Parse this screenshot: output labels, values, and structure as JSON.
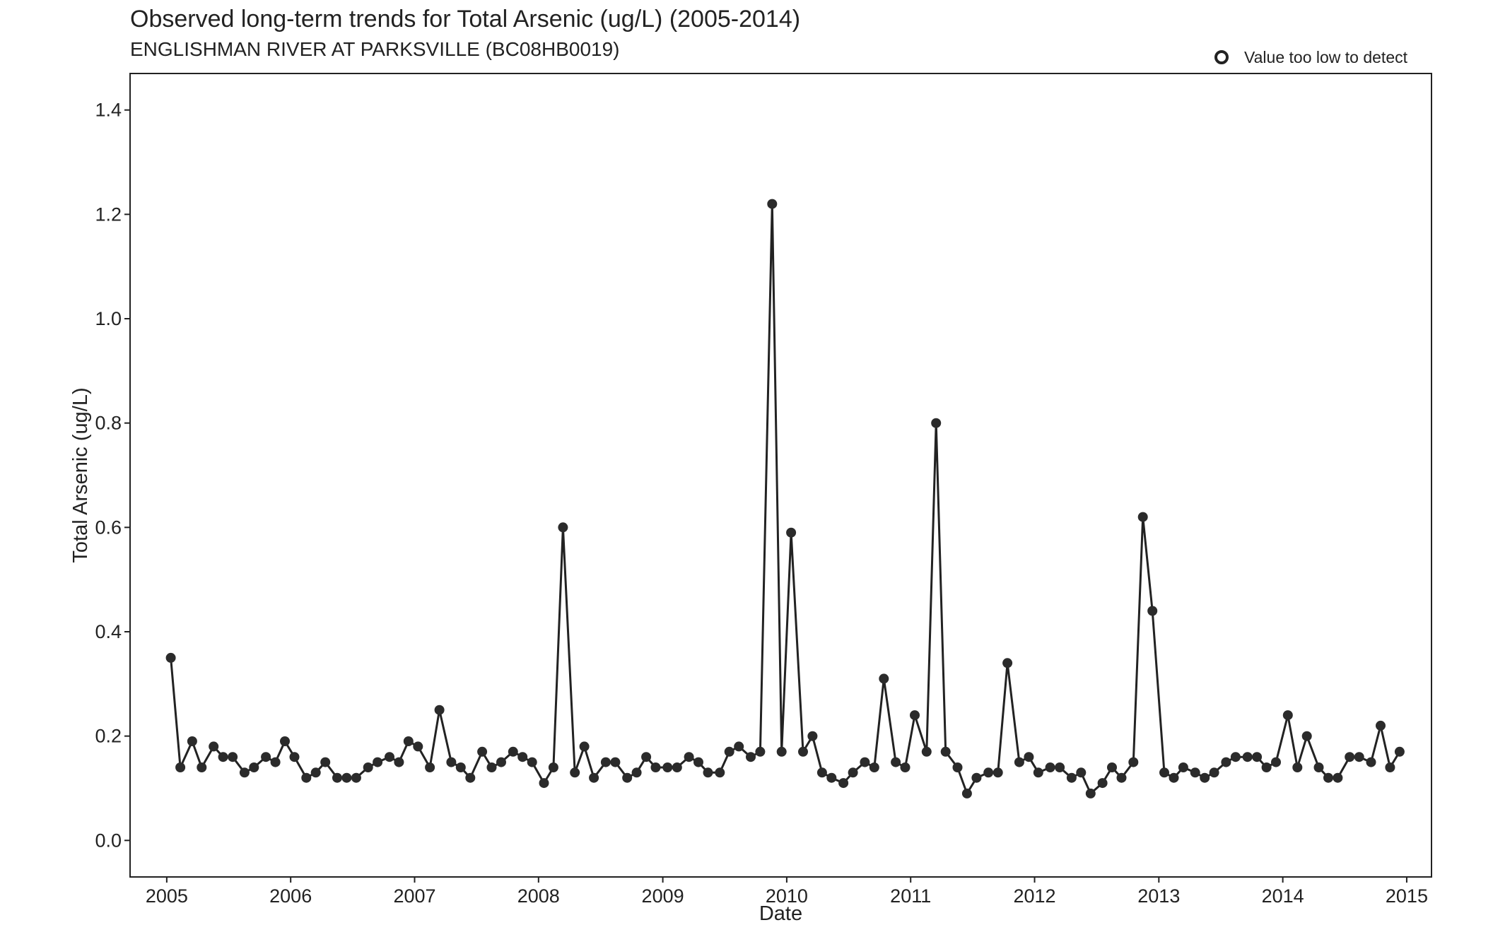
{
  "chart_data": {
    "type": "line",
    "title": "Observed long-term trends for Total Arsenic (ug/L) (2005-2014)",
    "subtitle": "ENGLISHMAN RIVER AT PARKSVILLE (BC08HB0019)",
    "xlabel": "Date",
    "ylabel": "Total Arsenic (ug/L)",
    "xlim": [
      "2004-09-15",
      "2015-03-15"
    ],
    "ylim": [
      -0.07,
      1.47
    ],
    "xticks": [
      "2005",
      "2006",
      "2007",
      "2008",
      "2009",
      "2010",
      "2011",
      "2012",
      "2013",
      "2014",
      "2015"
    ],
    "yticks": [
      "0.0",
      "0.2",
      "0.4",
      "0.6",
      "0.8",
      "1.0",
      "1.2",
      "1.4"
    ],
    "legend": {
      "position": "top-right",
      "label": "Value too low to detect",
      "marker": "open-circle"
    },
    "grid": false,
    "colors": {
      "line": "#222222",
      "point": "#2b2b2b"
    },
    "series": [
      {
        "x": [
          "2005-01-13",
          "2005-02-10",
          "2005-03-17",
          "2005-04-14",
          "2005-05-19",
          "2005-06-16",
          "2005-07-14",
          "2005-08-18",
          "2005-09-15",
          "2005-10-20",
          "2005-11-17",
          "2005-12-15",
          "2006-01-12",
          "2006-02-16",
          "2006-03-16",
          "2006-04-13",
          "2006-05-18",
          "2006-06-15",
          "2006-07-13",
          "2006-08-17",
          "2006-09-14",
          "2006-10-19",
          "2006-11-16",
          "2006-12-14",
          "2007-01-11",
          "2007-02-15",
          "2007-03-15",
          "2007-04-19",
          "2007-05-17",
          "2007-06-14",
          "2007-07-19",
          "2007-08-16",
          "2007-09-13",
          "2007-10-18",
          "2007-11-15",
          "2007-12-13",
          "2008-01-17",
          "2008-02-14",
          "2008-03-13",
          "2008-04-17",
          "2008-05-15",
          "2008-06-12",
          "2008-07-17",
          "2008-08-14",
          "2008-09-18",
          "2008-10-16",
          "2008-11-13",
          "2008-12-11",
          "2009-01-15",
          "2009-02-12",
          "2009-03-19",
          "2009-04-16",
          "2009-05-14",
          "2009-06-18",
          "2009-07-16",
          "2009-08-13",
          "2009-09-17",
          "2009-10-15",
          "2009-11-19",
          "2009-12-17",
          "2010-01-14",
          "2010-02-18",
          "2010-03-18",
          "2010-04-15",
          "2010-05-13",
          "2010-06-17",
          "2010-07-15",
          "2010-08-19",
          "2010-09-16",
          "2010-10-14",
          "2010-11-18",
          "2010-12-16",
          "2011-01-13",
          "2011-02-17",
          "2011-03-17",
          "2011-04-14",
          "2011-05-19",
          "2011-06-16",
          "2011-07-14",
          "2011-08-18",
          "2011-09-15",
          "2011-10-13",
          "2011-11-17",
          "2011-12-15",
          "2012-01-12",
          "2012-02-16",
          "2012-03-15",
          "2012-04-19",
          "2012-05-17",
          "2012-06-14",
          "2012-07-19",
          "2012-08-16",
          "2012-09-13",
          "2012-10-18",
          "2012-11-15",
          "2012-12-13",
          "2013-01-17",
          "2013-02-14",
          "2013-03-14",
          "2013-04-18",
          "2013-05-16",
          "2013-06-13",
          "2013-07-18",
          "2013-08-15",
          "2013-09-19",
          "2013-10-17",
          "2013-11-14",
          "2013-12-12",
          "2014-01-16",
          "2014-02-13",
          "2014-03-13",
          "2014-04-17",
          "2014-05-15",
          "2014-06-12",
          "2014-07-17",
          "2014-08-14",
          "2014-09-18",
          "2014-10-16",
          "2014-11-13",
          "2014-12-11"
        ],
        "y": [
          0.35,
          0.14,
          0.19,
          0.14,
          0.18,
          0.16,
          0.16,
          0.13,
          0.14,
          0.16,
          0.15,
          0.19,
          0.16,
          0.12,
          0.13,
          0.15,
          0.12,
          0.12,
          0.12,
          0.14,
          0.15,
          0.16,
          0.15,
          0.19,
          0.18,
          0.14,
          0.25,
          0.15,
          0.14,
          0.12,
          0.17,
          0.14,
          0.15,
          0.17,
          0.16,
          0.15,
          0.11,
          0.14,
          0.6,
          0.13,
          0.18,
          0.12,
          0.15,
          0.15,
          0.12,
          0.13,
          0.16,
          0.14,
          0.14,
          0.14,
          0.16,
          0.15,
          0.13,
          0.13,
          0.17,
          0.18,
          0.16,
          0.17,
          1.22,
          0.17,
          0.59,
          0.17,
          0.2,
          0.13,
          0.12,
          0.11,
          0.13,
          0.15,
          0.14,
          0.31,
          0.15,
          0.14,
          0.24,
          0.17,
          0.8,
          0.17,
          0.14,
          0.09,
          0.12,
          0.13,
          0.13,
          0.34,
          0.15,
          0.16,
          0.13,
          0.14,
          0.14,
          0.12,
          0.13,
          0.09,
          0.11,
          0.14,
          0.12,
          0.15,
          0.62,
          0.44,
          0.13,
          0.12,
          0.14,
          0.13,
          0.12,
          0.13,
          0.15,
          0.16,
          0.16,
          0.16,
          0.14,
          0.15,
          0.24,
          0.14,
          0.2,
          0.14,
          0.12,
          0.12,
          0.16,
          0.16,
          0.15,
          0.22,
          0.14,
          0.17
        ]
      }
    ]
  }
}
